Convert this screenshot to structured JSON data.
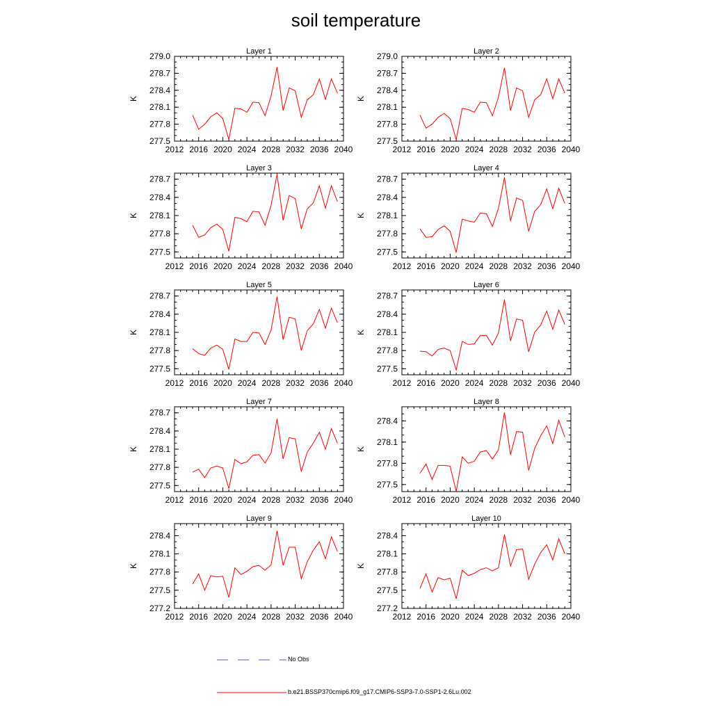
{
  "title": "soil temperature",
  "chart_data": {
    "type": "line",
    "x": [
      2015,
      2016,
      2017,
      2018,
      2019,
      2020,
      2021,
      2022,
      2023,
      2024,
      2025,
      2026,
      2027,
      2028,
      2029,
      2030,
      2031,
      2032,
      2033,
      2034,
      2035,
      2036,
      2037,
      2038,
      2039
    ],
    "xlim": [
      2012,
      2040
    ],
    "xticks": [
      "2012",
      "2016",
      "2020",
      "2024",
      "2028",
      "2032",
      "2036",
      "2040"
    ],
    "ylabel": "K",
    "series_name": "b.e21.BSSP370cmip6.f09_g17.CMIP6-SSP3-7.0-SSP1-2.6Lu.002",
    "series_color": "#ff0000",
    "panels": [
      {
        "name": "Layer 1",
        "ylim": [
          277.5,
          279.0
        ],
        "yticks": [
          "277.5",
          "277.8",
          "278.1",
          "278.4",
          "278.7",
          "279.0"
        ],
        "values": [
          277.96,
          277.71,
          277.8,
          277.93,
          278.0,
          277.9,
          277.53,
          278.08,
          278.07,
          278.01,
          278.19,
          278.18,
          277.95,
          278.3,
          278.81,
          278.04,
          278.44,
          278.39,
          277.92,
          278.23,
          278.32,
          278.6,
          278.24,
          278.6,
          278.35
        ]
      },
      {
        "name": "Layer 2",
        "ylim": [
          277.5,
          279.0
        ],
        "yticks": [
          "277.5",
          "277.8",
          "278.1",
          "278.4",
          "278.7",
          "279.0"
        ],
        "values": [
          277.96,
          277.73,
          277.8,
          277.92,
          277.99,
          277.9,
          277.53,
          278.08,
          278.06,
          278.01,
          278.19,
          278.18,
          277.95,
          278.28,
          278.8,
          278.04,
          278.44,
          278.39,
          277.92,
          278.23,
          278.32,
          278.6,
          278.25,
          278.6,
          278.35
        ]
      },
      {
        "name": "Layer 3",
        "ylim": [
          277.4,
          278.8
        ],
        "yticks": [
          "277.5",
          "277.8",
          "278.1",
          "278.4",
          "278.7"
        ],
        "values": [
          277.94,
          277.74,
          277.78,
          277.9,
          277.96,
          277.87,
          277.51,
          278.07,
          278.05,
          278.0,
          278.17,
          278.16,
          277.94,
          278.27,
          278.78,
          278.02,
          278.43,
          278.38,
          277.88,
          278.21,
          278.31,
          278.59,
          278.22,
          278.59,
          278.33
        ]
      },
      {
        "name": "Layer 4",
        "ylim": [
          277.4,
          278.8
        ],
        "yticks": [
          "277.5",
          "277.8",
          "278.1",
          "278.4",
          "278.7"
        ],
        "values": [
          277.88,
          277.74,
          277.75,
          277.87,
          277.93,
          277.84,
          277.49,
          278.04,
          278.01,
          277.99,
          278.14,
          278.13,
          277.92,
          278.22,
          278.73,
          278.01,
          278.39,
          278.35,
          277.84,
          278.17,
          278.28,
          278.54,
          278.21,
          278.55,
          278.3
        ]
      },
      {
        "name": "Layer 5",
        "ylim": [
          277.4,
          278.8
        ],
        "yticks": [
          "277.5",
          "277.8",
          "278.1",
          "278.4",
          "278.7"
        ],
        "values": [
          277.83,
          277.75,
          277.72,
          277.84,
          277.89,
          277.82,
          277.49,
          277.99,
          277.95,
          277.95,
          278.1,
          278.09,
          277.9,
          278.14,
          278.69,
          277.98,
          278.35,
          278.32,
          277.8,
          278.13,
          278.24,
          278.48,
          278.17,
          278.5,
          278.26
        ]
      },
      {
        "name": "Layer 6",
        "ylim": [
          277.4,
          278.8
        ],
        "yticks": [
          "277.5",
          "277.8",
          "278.1",
          "278.4",
          "278.7"
        ],
        "values": [
          277.79,
          277.78,
          277.71,
          277.82,
          277.84,
          277.8,
          277.48,
          277.95,
          277.9,
          277.91,
          278.05,
          278.05,
          277.89,
          278.09,
          278.64,
          277.96,
          278.32,
          278.3,
          277.78,
          278.1,
          278.22,
          278.45,
          278.15,
          278.47,
          278.23
        ]
      },
      {
        "name": "Layer 7",
        "ylim": [
          277.4,
          278.8
        ],
        "yticks": [
          "277.5",
          "277.8",
          "278.1",
          "278.4",
          "278.7"
        ],
        "values": [
          277.72,
          277.77,
          277.63,
          277.79,
          277.82,
          277.79,
          277.45,
          277.93,
          277.86,
          277.89,
          278.0,
          278.01,
          277.87,
          278.04,
          278.6,
          277.94,
          278.29,
          278.27,
          277.73,
          278.05,
          278.2,
          278.38,
          278.1,
          278.44,
          278.2
        ]
      },
      {
        "name": "Layer 8",
        "ylim": [
          277.4,
          278.6
        ],
        "yticks": [
          "277.5",
          "277.8",
          "278.1",
          "278.4"
        ],
        "values": [
          277.66,
          277.79,
          277.57,
          277.77,
          277.77,
          277.76,
          277.4,
          277.89,
          277.8,
          277.83,
          277.96,
          277.98,
          277.86,
          277.99,
          278.52,
          277.92,
          278.25,
          278.24,
          277.7,
          278.01,
          278.19,
          278.33,
          278.08,
          278.41,
          278.17
        ]
      },
      {
        "name": "Layer 9",
        "ylim": [
          277.2,
          278.6
        ],
        "yticks": [
          "277.2",
          "277.5",
          "277.8",
          "278.1",
          "278.4"
        ],
        "values": [
          277.6,
          277.77,
          277.5,
          277.74,
          277.72,
          277.73,
          277.38,
          277.87,
          277.76,
          277.81,
          277.89,
          277.91,
          277.83,
          277.92,
          278.48,
          277.91,
          278.21,
          278.21,
          277.69,
          277.97,
          278.16,
          278.3,
          278.02,
          278.38,
          278.14
        ]
      },
      {
        "name": "Layer 10",
        "ylim": [
          277.2,
          278.6
        ],
        "yticks": [
          "277.2",
          "277.5",
          "277.8",
          "278.1",
          "278.4"
        ],
        "values": [
          277.53,
          277.77,
          277.47,
          277.71,
          277.67,
          277.7,
          277.36,
          277.83,
          277.74,
          277.78,
          277.84,
          277.87,
          277.82,
          277.87,
          278.42,
          277.9,
          278.17,
          278.18,
          277.68,
          277.93,
          278.12,
          278.25,
          278.0,
          278.35,
          278.1
        ]
      }
    ]
  },
  "legend": {
    "obs_label": "No Obs",
    "obs_color": "#5555cc",
    "model_label": "b.e21.BSSP370cmip6.f09_g17.CMIP6-SSP3-7.0-SSP1-2.6Lu.002",
    "model_color": "#ff0000"
  }
}
